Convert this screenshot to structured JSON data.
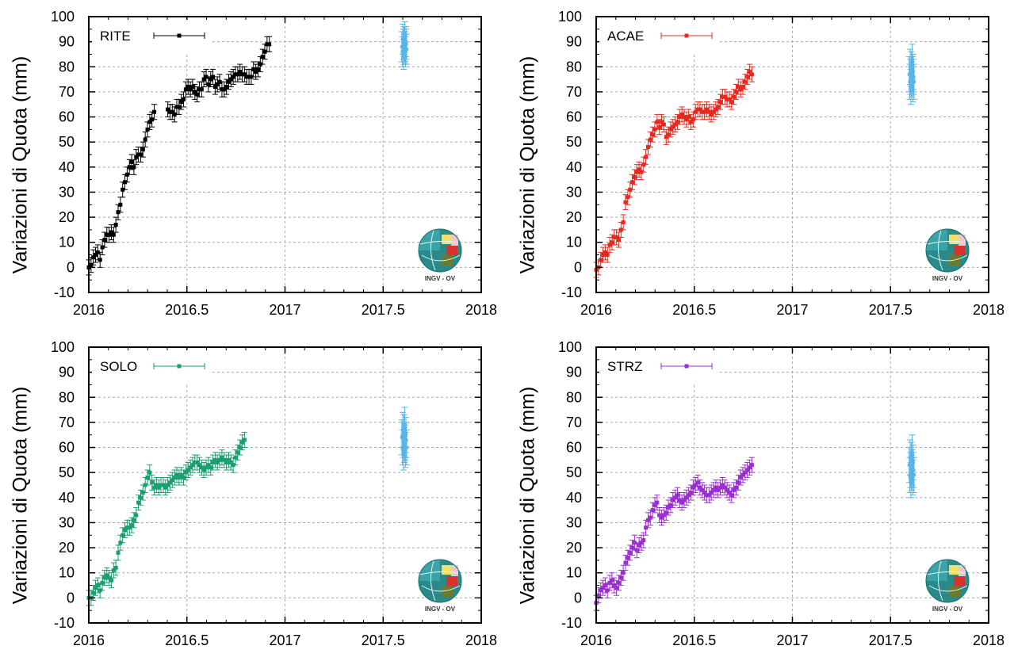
{
  "chart_data": [
    {
      "type": "scatter",
      "station": "RITE",
      "color": "#000000",
      "recent_color": "#5ab4e5",
      "ylabel": "Variazioni di Quota (mm)",
      "xlim": [
        2016,
        2018
      ],
      "ylim": [
        -10,
        100
      ],
      "xticks": [
        "2016",
        "2016.5",
        "2017",
        "2017.5",
        "2018"
      ],
      "yticks": [
        "-10",
        "0",
        "10",
        "20",
        "30",
        "40",
        "50",
        "60",
        "70",
        "80",
        "90",
        "100"
      ],
      "grid": true,
      "legend_position": "top-left",
      "error_mm": 3,
      "recent_error_mm": 6,
      "series_x_start": 2016.0,
      "series_x_step": 0.0115,
      "series_y": [
        0,
        1,
        4,
        5,
        6,
        3,
        8,
        11,
        13,
        13,
        14,
        13,
        17,
        22,
        25,
        31,
        34,
        37,
        40,
        42,
        40,
        44,
        45,
        45,
        47,
        51,
        55,
        58,
        59,
        62,
        null,
        null,
        null,
        null,
        null,
        63,
        62,
        62,
        61,
        64,
        64,
        66,
        67,
        71,
        72,
        71,
        72,
        70,
        69,
        71,
        71,
        75,
        76,
        73,
        75,
        76,
        72,
        73,
        74,
        71,
        71,
        72,
        74,
        75,
        76,
        77,
        77,
        78,
        77,
        77,
        76,
        76,
        76,
        79,
        78,
        79,
        81,
        84,
        86,
        89,
        89
      ],
      "recent_x": [
        2017.595,
        2017.598,
        2017.6,
        2017.602,
        2017.604,
        2017.606,
        2017.608,
        2017.61,
        2017.612,
        2017.614,
        2017.616,
        2017.618,
        2017.62
      ],
      "recent_y": [
        88,
        86,
        91,
        89,
        85,
        90,
        87,
        92,
        88,
        86,
        90,
        89,
        87
      ]
    },
    {
      "type": "scatter",
      "station": "ACAE",
      "color": "#e8281e",
      "recent_color": "#5ab4e5",
      "ylabel": "Variazioni di Quota (mm)",
      "xlim": [
        2016,
        2018
      ],
      "ylim": [
        -10,
        100
      ],
      "xticks": [
        "2016",
        "2016.5",
        "2017",
        "2017.5",
        "2018"
      ],
      "yticks": [
        "-10",
        "0",
        "10",
        "20",
        "30",
        "40",
        "50",
        "60",
        "70",
        "80",
        "90",
        "100"
      ],
      "grid": true,
      "legend_position": "top-left",
      "error_mm": 3,
      "recent_error_mm": 7,
      "series_x_start": 2016.0,
      "series_x_step": 0.0115,
      "series_y": [
        -1,
        0,
        3,
        5,
        6,
        5,
        9,
        10,
        12,
        12,
        11,
        15,
        18,
        26,
        28,
        31,
        34,
        36,
        38,
        39,
        38,
        41,
        44,
        48,
        51,
        53,
        55,
        58,
        56,
        58,
        57,
        52,
        53,
        55,
        56,
        57,
        58,
        60,
        61,
        60,
        59,
        60,
        58,
        59,
        62,
        63,
        63,
        62,
        62,
        63,
        62,
        61,
        62,
        63,
        64,
        66,
        68,
        68,
        67,
        67,
        66,
        68,
        70,
        72,
        71,
        72,
        74,
        76,
        78,
        77
      ],
      "recent_x": [
        2017.595,
        2017.598,
        2017.6,
        2017.602,
        2017.604,
        2017.606,
        2017.608,
        2017.61,
        2017.612,
        2017.614,
        2017.616,
        2017.618,
        2017.62
      ],
      "recent_y": [
        77,
        74,
        80,
        76,
        72,
        79,
        75,
        82,
        77,
        73,
        78,
        76,
        74
      ]
    },
    {
      "type": "scatter",
      "station": "SOLO",
      "color": "#1a9e73",
      "recent_color": "#5ab4e5",
      "ylabel": "Variazioni di Quota (mm)",
      "xlim": [
        2016,
        2018
      ],
      "ylim": [
        -10,
        100
      ],
      "xticks": [
        "2016",
        "2016.5",
        "2017",
        "2017.5",
        "2018"
      ],
      "yticks": [
        "-10",
        "0",
        "10",
        "20",
        "30",
        "40",
        "50",
        "60",
        "70",
        "80",
        "90",
        "100"
      ],
      "grid": true,
      "legend_position": "top-left",
      "error_mm": 3,
      "recent_error_mm": 7,
      "series_x_start": 2016.0,
      "series_x_step": 0.0115,
      "series_y": [
        0,
        0,
        2,
        4,
        5,
        3,
        6,
        8,
        9,
        8,
        7,
        11,
        12,
        18,
        22,
        25,
        27,
        28,
        28,
        29,
        31,
        33,
        38,
        40,
        42,
        45,
        48,
        50,
        46,
        44,
        45,
        44,
        45,
        45,
        44,
        45,
        46,
        47,
        48,
        49,
        48,
        49,
        48,
        50,
        51,
        52,
        53,
        54,
        54,
        53,
        52,
        51,
        52,
        53,
        52,
        54,
        55,
        54,
        55,
        56,
        55,
        54,
        55,
        54,
        53,
        56,
        58,
        60,
        62,
        63
      ],
      "recent_x": [
        2017.595,
        2017.598,
        2017.6,
        2017.602,
        2017.604,
        2017.606,
        2017.608,
        2017.61,
        2017.612,
        2017.614,
        2017.616,
        2017.618,
        2017.62
      ],
      "recent_y": [
        64,
        60,
        67,
        63,
        58,
        66,
        61,
        69,
        62,
        59,
        65,
        63,
        60
      ]
    },
    {
      "type": "scatter",
      "station": "STRZ",
      "color": "#9b2ed1",
      "recent_color": "#5ab4e5",
      "ylabel": "Variazioni di Quota (mm)",
      "xlim": [
        2016,
        2018
      ],
      "ylim": [
        -10,
        100
      ],
      "xticks": [
        "2016",
        "2016.5",
        "2017",
        "2017.5",
        "2018"
      ],
      "yticks": [
        "-10",
        "0",
        "10",
        "20",
        "30",
        "40",
        "50",
        "60",
        "70",
        "80",
        "90",
        "100"
      ],
      "grid": true,
      "legend_position": "top-left",
      "error_mm": 3,
      "recent_error_mm": 7,
      "series_x_start": 2016.0,
      "series_x_step": 0.0115,
      "series_y": [
        -2,
        1,
        3,
        4,
        5,
        3,
        6,
        7,
        5,
        4,
        6,
        8,
        10,
        14,
        16,
        18,
        20,
        22,
        19,
        21,
        22,
        23,
        28,
        31,
        32,
        35,
        37,
        38,
        33,
        32,
        33,
        34,
        36,
        37,
        39,
        40,
        41,
        39,
        38,
        39,
        40,
        41,
        42,
        44,
        45,
        46,
        44,
        43,
        42,
        41,
        41,
        42,
        43,
        44,
        43,
        44,
        45,
        44,
        43,
        42,
        41,
        43,
        44,
        46,
        48,
        49,
        50,
        51,
        52,
        53
      ],
      "recent_x": [
        2017.595,
        2017.598,
        2017.6,
        2017.602,
        2017.604,
        2017.606,
        2017.608,
        2017.61,
        2017.612,
        2017.614,
        2017.616,
        2017.618,
        2017.62
      ],
      "recent_y": [
        53,
        49,
        56,
        51,
        47,
        55,
        50,
        58,
        52,
        48,
        54,
        51,
        49
      ]
    }
  ],
  "logo": {
    "text": "INGV - OV"
  }
}
